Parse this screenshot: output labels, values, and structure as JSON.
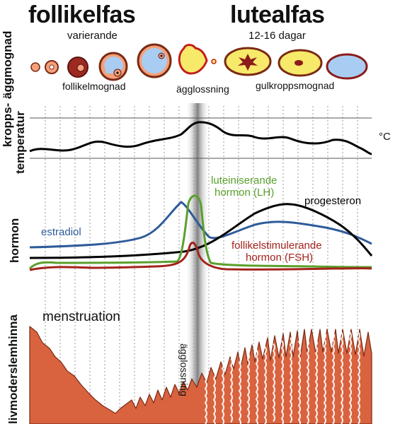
{
  "phases": {
    "follicular": {
      "title": "follikelfas",
      "subtitle": "varierande"
    },
    "luteal": {
      "title": "lutealfas",
      "subtitle": "12-16 dagar"
    }
  },
  "row_labels": {
    "ovarian": "äggmognad",
    "temperature_line1": "kropps-",
    "temperature_line2": "temperatur",
    "hormones": "hormon",
    "endometrium": "livmoderslemhinna"
  },
  "ovary_labels": {
    "follicle_maturation": "follikelmognad",
    "ovulation": "ägglossning",
    "corpus_luteum": "gulkroppsmognad"
  },
  "temperature_unit": "°C",
  "hormone_labels": {
    "estradiol": "estradiol",
    "lh_line1": "luteiniserande",
    "lh_line2": "hormon (LH)",
    "progesterone": "progesteron",
    "fsh_line1": "follikelstimulerande",
    "fsh_line2": "hormon (FSH)"
  },
  "endometrium_labels": {
    "menstruation": "menstruation",
    "ovulation_vertical": "ägglossning"
  },
  "colors": {
    "estradiol": "#2e5b9a",
    "lh": "#5aa02c",
    "fsh": "#a3231c",
    "progesterone": "#000000",
    "temperature": "#000000",
    "endometrium_fill": "#d9633f",
    "endometrium_stroke": "#7a2a14",
    "follicle_fluid": "#a9cdf2",
    "corpus_luteum": "#f7e96a"
  }
}
